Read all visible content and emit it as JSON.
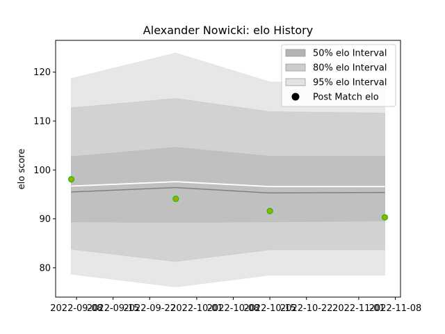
{
  "chart_data": {
    "type": "area",
    "title": "Alexander Nowicki: elo History",
    "xlabel": "",
    "ylabel": "elo score",
    "x": [
      "2022-09-07",
      "2022-09-27",
      "2022-10-15",
      "2022-11-06"
    ],
    "xlim": [
      "2022-09-04",
      "2022-11-09"
    ],
    "ylim": [
      74,
      126.5
    ],
    "x_ticks": [
      "2022-09-08",
      "2022-09-15",
      "2022-09-22",
      "2022-10-01",
      "2022-10-08",
      "2022-10-15",
      "2022-10-22",
      "2022-11-01",
      "2022-11-08"
    ],
    "y_ticks": [
      80,
      90,
      100,
      110,
      120
    ],
    "grid": false,
    "legend_position": "top-right",
    "bands": [
      {
        "name": "95% elo Interval",
        "color": "#e3e3e3",
        "lower": [
          78.7,
          76.1,
          78.5,
          78.5
        ],
        "upper": [
          118.7,
          123.9,
          118.0,
          117.6
        ]
      },
      {
        "name": "80% elo Interval",
        "color": "#cecece",
        "lower": [
          83.8,
          81.3,
          83.7,
          83.7
        ],
        "upper": [
          112.7,
          114.6,
          111.9,
          111.6
        ]
      },
      {
        "name": "50% elo Interval",
        "color": "#bdbdbd",
        "lower": [
          89.4,
          89.3,
          89.4,
          89.6
        ],
        "upper": [
          102.7,
          104.6,
          102.8,
          102.8
        ]
      }
    ],
    "lines": [
      {
        "role": "mean",
        "color": "#ffffff",
        "values": [
          96.7,
          97.6,
          96.6,
          96.6
        ]
      },
      {
        "role": "median",
        "color": "#808080",
        "values": [
          95.5,
          96.4,
          95.3,
          95.4
        ]
      }
    ],
    "series": [
      {
        "name": "Post Match elo",
        "x": [
          "2022-09-07",
          "2022-09-27",
          "2022-10-15",
          "2022-11-06"
        ],
        "values": [
          98.1,
          94.1,
          91.6,
          90.3
        ],
        "color": "#000000"
      }
    ],
    "point_fill": "#a8a800",
    "point_edge": "#00cc00"
  }
}
